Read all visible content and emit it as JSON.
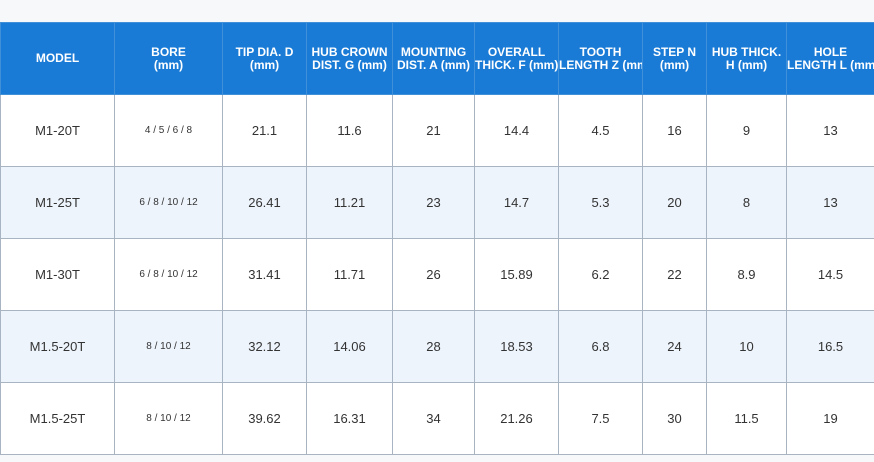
{
  "table": {
    "headers": [
      [
        "MODEL"
      ],
      [
        "BORE",
        "(mm)"
      ],
      [
        "TIP DIA. D",
        "(mm)"
      ],
      [
        "HUB CROWN",
        "DIST. G (mm)"
      ],
      [
        "MOUNTING",
        "DIST. A (mm)"
      ],
      [
        "OVERALL",
        "THICK. F (mm)"
      ],
      [
        "TOOTH",
        "LENGTH Z (mm)"
      ],
      [
        "STEP N",
        "(mm)"
      ],
      [
        "HUB THICK.",
        "H (mm)"
      ],
      [
        "HOLE",
        "LENGTH L (mm)"
      ]
    ],
    "rows": [
      [
        "M1-20T",
        "4 / 5 / 6 / 8",
        "21.1",
        "11.6",
        "21",
        "14.4",
        "4.5",
        "16",
        "9",
        "13"
      ],
      [
        "M1-25T",
        "6 / 8 / 10 / 12",
        "26.41",
        "11.21",
        "23",
        "14.7",
        "5.3",
        "20",
        "8",
        "13"
      ],
      [
        "M1-30T",
        "6 / 8 / 10 / 12",
        "31.41",
        "11.71",
        "26",
        "15.89",
        "6.2",
        "22",
        "8.9",
        "14.5"
      ],
      [
        "M1.5-20T",
        "8 / 10 / 12",
        "32.12",
        "14.06",
        "28",
        "18.53",
        "6.8",
        "24",
        "10",
        "16.5"
      ],
      [
        "M1.5-25T",
        "8 / 10 / 12",
        "39.62",
        "16.31",
        "34",
        "21.26",
        "7.5",
        "30",
        "11.5",
        "19"
      ]
    ]
  },
  "colors": {
    "header_bg": "#1a7bd6",
    "header_text": "#ffffff",
    "alt_row_bg": "#eef4fc",
    "border": "#a9b4c2"
  }
}
